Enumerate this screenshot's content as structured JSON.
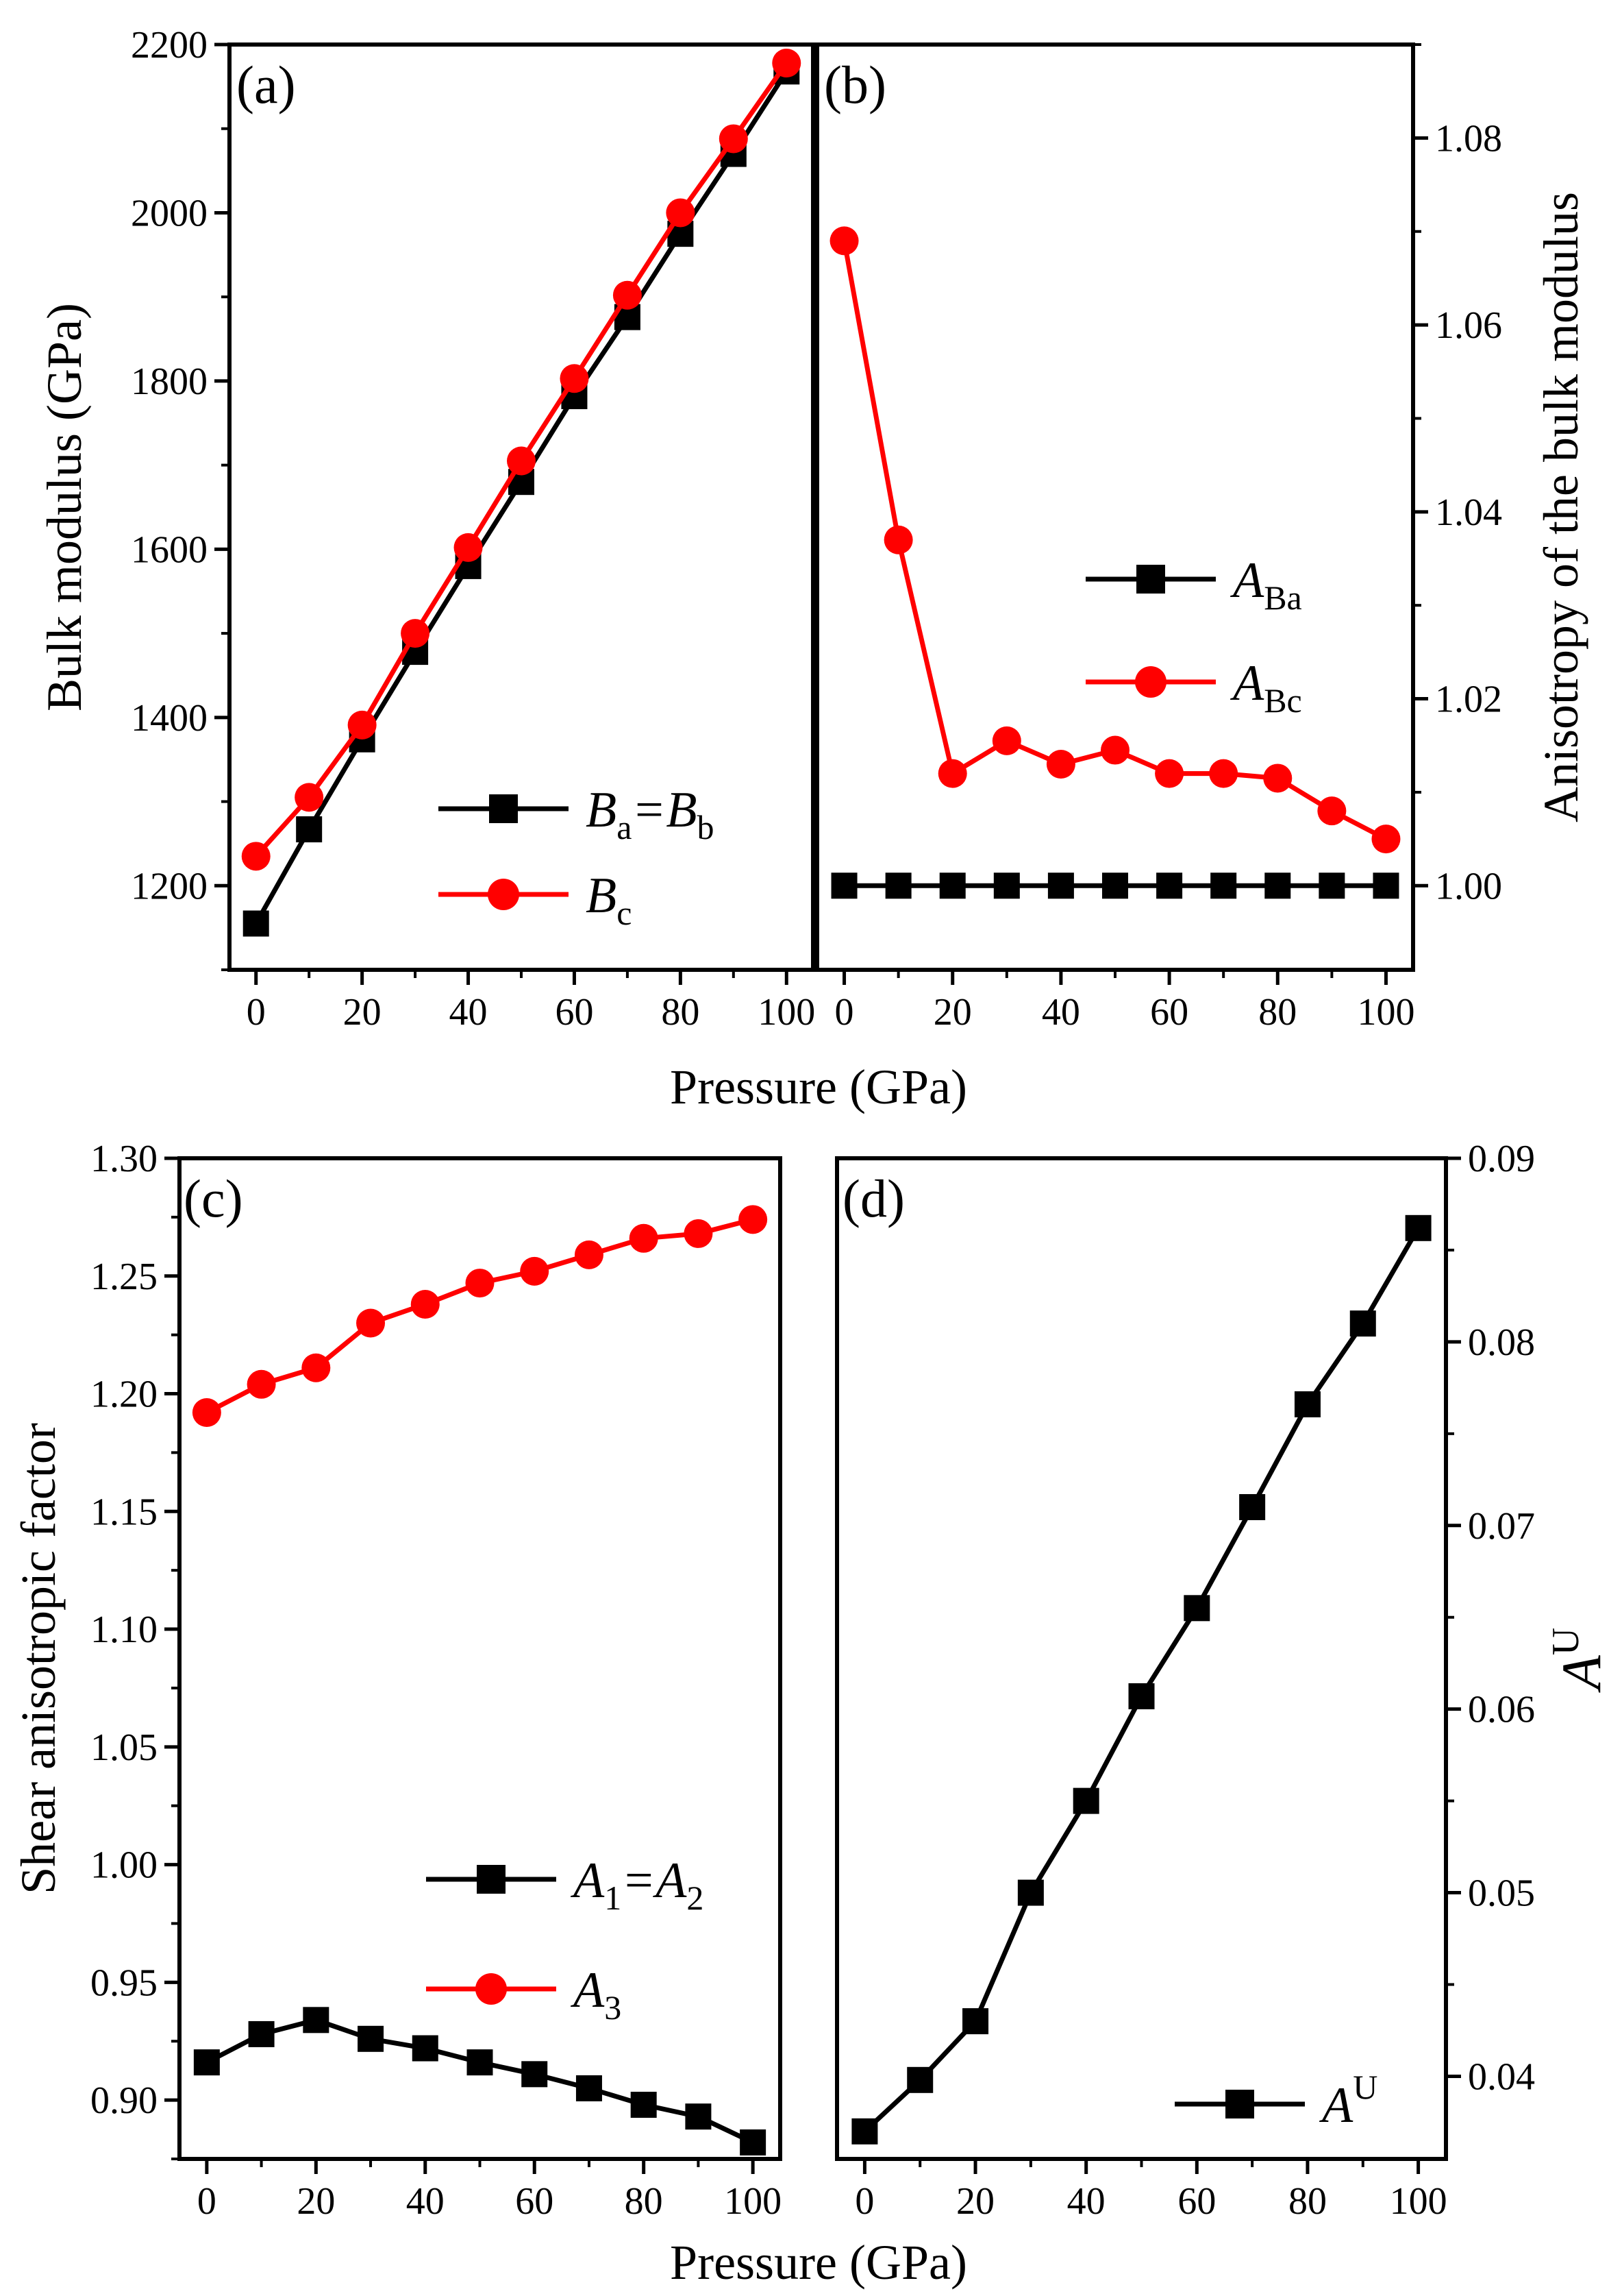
{
  "colors": {
    "black_series": "#000000",
    "red_series": "#ff0000"
  },
  "x_axis_title_top": "Pressure (GPa)",
  "x_axis_title_bottom": "Pressure (GPa)",
  "chart_data": [
    {
      "panel": "(a)",
      "type": "line",
      "ylabel": "Bulk modulus (GPa)",
      "x": [
        0,
        10,
        20,
        30,
        40,
        50,
        60,
        70,
        80,
        90,
        100
      ],
      "xlim": [
        -5,
        105
      ],
      "ylim": [
        1100,
        2200
      ],
      "x_ticks": [
        "0",
        "20",
        "40",
        "60",
        "80",
        "100"
      ],
      "y_ticks": [
        "1200",
        "1400",
        "1600",
        "1800",
        "2000",
        "2200"
      ],
      "series": [
        {
          "name_parts": [
            "B",
            "a",
            "=B",
            "b"
          ],
          "color": "#000000",
          "marker": "square",
          "values": [
            1155,
            1267,
            1374,
            1478,
            1580,
            1680,
            1782,
            1876,
            1975,
            2070,
            2168
          ]
        },
        {
          "name_parts": [
            "B",
            "c"
          ],
          "color": "#ff0000",
          "marker": "circle",
          "values": [
            1235,
            1305,
            1391,
            1500,
            1602,
            1705,
            1803,
            1902,
            2000,
            2088,
            2178
          ]
        }
      ],
      "legend": "bottom-right"
    },
    {
      "panel": "(b)",
      "type": "line",
      "ylabel": "Anisotropy of the bulk modulus",
      "x": [
        0,
        10,
        20,
        30,
        40,
        50,
        60,
        70,
        80,
        90,
        100
      ],
      "xlim": [
        -5,
        105
      ],
      "ylim": [
        0.991,
        1.09
      ],
      "x_ticks": [
        "0",
        "20",
        "40",
        "60",
        "80",
        "100"
      ],
      "y_ticks": [
        "1.00",
        "1.02",
        "1.04",
        "1.06",
        "1.08"
      ],
      "series": [
        {
          "name_parts": [
            "A",
            "Ba"
          ],
          "color": "#000000",
          "marker": "square",
          "values": [
            1.0,
            1.0,
            1.0,
            1.0,
            1.0,
            1.0,
            1.0,
            1.0,
            1.0,
            1.0,
            1.0
          ]
        },
        {
          "name_parts": [
            "A",
            "Bc"
          ],
          "color": "#ff0000",
          "marker": "circle",
          "values": [
            1.069,
            1.037,
            1.012,
            1.0155,
            1.013,
            1.0145,
            1.012,
            1.012,
            1.0115,
            1.008,
            1.005
          ]
        }
      ],
      "legend": "center-right"
    },
    {
      "panel": "(c)",
      "type": "line",
      "ylabel": "Shear anisotropic factor",
      "x": [
        0,
        10,
        20,
        30,
        40,
        50,
        60,
        70,
        80,
        90,
        100
      ],
      "xlim": [
        -5,
        105
      ],
      "ylim": [
        0.875,
        1.3
      ],
      "x_ticks": [
        "0",
        "20",
        "40",
        "60",
        "80",
        "100"
      ],
      "y_ticks": [
        "0.90",
        "0.95",
        "1.00",
        "1.05",
        "1.10",
        "1.15",
        "1.20",
        "1.25",
        "1.30"
      ],
      "series": [
        {
          "name_parts": [
            "A",
            "1",
            "=A",
            "2"
          ],
          "color": "#000000",
          "marker": "square",
          "values": [
            0.916,
            0.928,
            0.934,
            0.926,
            0.922,
            0.916,
            0.911,
            0.905,
            0.898,
            0.893,
            0.882
          ]
        },
        {
          "name_parts": [
            "A",
            "3"
          ],
          "color": "#ff0000",
          "marker": "circle",
          "values": [
            1.192,
            1.204,
            1.211,
            1.23,
            1.238,
            1.247,
            1.252,
            1.259,
            1.266,
            1.268,
            1.274
          ]
        }
      ],
      "legend": "bottom-right"
    },
    {
      "panel": "(d)",
      "type": "line",
      "ylabel": "A^U",
      "ylabel_parts": [
        "A",
        "U"
      ],
      "x": [
        0,
        10,
        20,
        30,
        40,
        50,
        60,
        70,
        80,
        90,
        100
      ],
      "xlim": [
        -5,
        105
      ],
      "ylim": [
        0.0355,
        0.09
      ],
      "x_ticks": [
        "0",
        "20",
        "40",
        "60",
        "80",
        "100"
      ],
      "y_ticks": [
        "0.04",
        "0.05",
        "0.06",
        "0.07",
        "0.08",
        "0.09"
      ],
      "series": [
        {
          "name_parts": [
            "A",
            "U"
          ],
          "color": "#000000",
          "marker": "square",
          "values": [
            0.037,
            0.0398,
            0.043,
            0.05,
            0.055,
            0.0607,
            0.0655,
            0.071,
            0.0766,
            0.081,
            0.0862
          ]
        }
      ],
      "legend": "bottom-right"
    }
  ]
}
